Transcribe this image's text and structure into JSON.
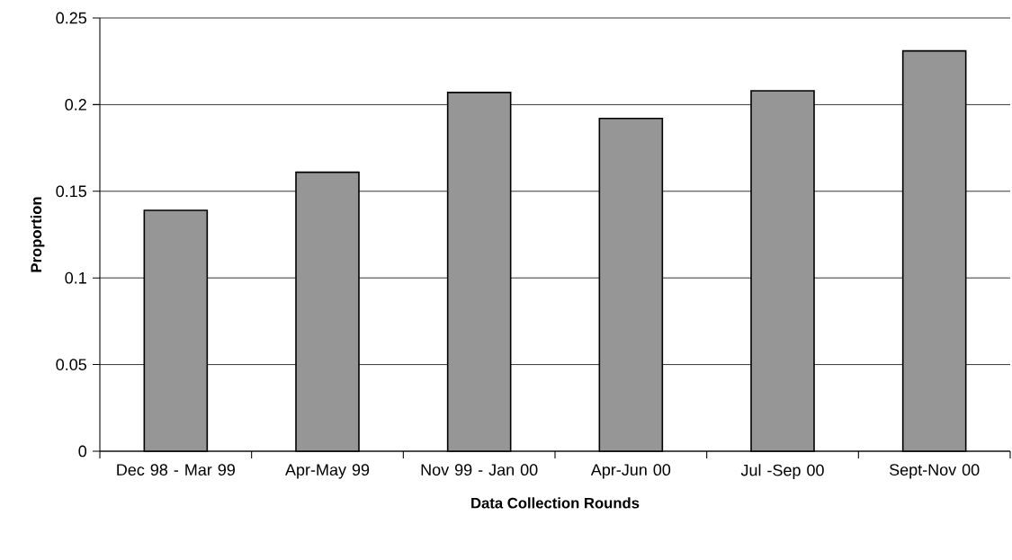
{
  "chart_data": {
    "type": "bar",
    "xlabel": "Data Collection Rounds",
    "ylabel": "Proportion",
    "categories": [
      "Dec 98 - Mar 99",
      "Apr-May 99",
      "Nov 99 - Jan 00",
      "Apr-Jun 00",
      "Jul -Sep 00",
      "Sept-Nov 00"
    ],
    "values": [
      0.139,
      0.161,
      0.207,
      0.192,
      0.208,
      0.231
    ],
    "color": "#969696",
    "ylim": [
      0,
      0.25
    ],
    "yticks": [
      0,
      0.05,
      0.1,
      0.15,
      0.2,
      0.25
    ],
    "grid": "y"
  }
}
